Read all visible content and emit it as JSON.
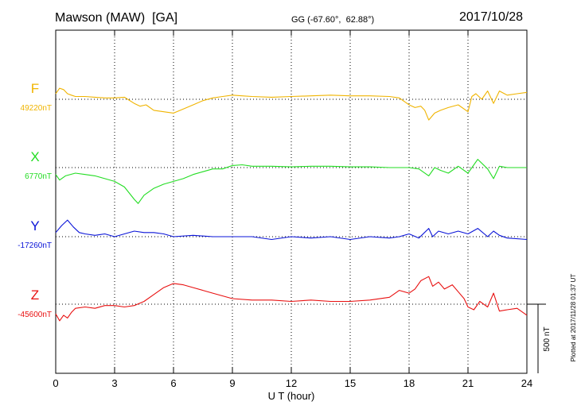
{
  "header": {
    "station": "Mawson (MAW)  [GA]",
    "coords": "GG (-67.60°,  62.88°)",
    "date": "2017/10/28"
  },
  "footer": {
    "plotted": "Plotted at 2017/11/28 01:37 UT"
  },
  "chart_data": {
    "type": "line",
    "xlabel": "U T (hour)",
    "xlim": [
      0,
      24
    ],
    "xticks": [
      0,
      3,
      6,
      9,
      12,
      15,
      18,
      21,
      24
    ],
    "scale_bar": {
      "label": "500 nT",
      "value_nT": 500
    },
    "series": [
      {
        "name": "F",
        "baseline_label": "49220nT",
        "baseline_nT": 49220,
        "color": "#f0b400",
        "x": [
          0,
          0.2,
          0.4,
          0.6,
          0.8,
          1.0,
          1.5,
          2.0,
          2.5,
          3.0,
          3.5,
          4.0,
          4.3,
          4.6,
          5.0,
          5.5,
          6.0,
          6.5,
          7.0,
          7.5,
          8.0,
          8.5,
          9.0,
          9.5,
          10,
          11,
          12,
          13,
          14,
          15,
          16,
          17,
          17.5,
          18,
          18.3,
          18.6,
          18.8,
          19.0,
          19.3,
          19.6,
          20.0,
          20.5,
          21.0,
          21.2,
          21.4,
          21.7,
          22.0,
          22.3,
          22.6,
          23,
          23.5,
          24
        ],
        "y": [
          40,
          80,
          70,
          40,
          30,
          20,
          20,
          15,
          10,
          10,
          15,
          -30,
          -50,
          -40,
          -80,
          -90,
          -100,
          -70,
          -40,
          -10,
          10,
          20,
          30,
          25,
          20,
          15,
          20,
          25,
          30,
          25,
          25,
          20,
          10,
          -40,
          -60,
          -50,
          -80,
          -150,
          -100,
          -80,
          -60,
          -40,
          -90,
          20,
          40,
          0,
          60,
          -30,
          60,
          30,
          40,
          50
        ]
      },
      {
        "name": "X",
        "baseline_label": "6770nT",
        "baseline_nT": 6770,
        "color": "#22dd22",
        "x": [
          0,
          0.2,
          0.5,
          1.0,
          1.5,
          2.0,
          2.5,
          3.0,
          3.5,
          4.0,
          4.2,
          4.5,
          5.0,
          5.5,
          6.0,
          6.5,
          7.0,
          7.5,
          8.0,
          8.5,
          9.0,
          9.5,
          10,
          11,
          12,
          13,
          14,
          15,
          16,
          17,
          18,
          18.5,
          19,
          19.3,
          19.6,
          20,
          20.5,
          21,
          21.5,
          22,
          22.3,
          22.6,
          23,
          24
        ],
        "y": [
          -50,
          -90,
          -60,
          -40,
          -50,
          -60,
          -80,
          -100,
          -140,
          -230,
          -260,
          -200,
          -150,
          -120,
          -100,
          -80,
          -50,
          -30,
          -10,
          -10,
          15,
          20,
          10,
          10,
          5,
          10,
          10,
          5,
          5,
          0,
          0,
          -10,
          -60,
          0,
          -20,
          -40,
          10,
          -40,
          60,
          -10,
          -80,
          10,
          0,
          0
        ]
      },
      {
        "name": "Y",
        "baseline_label": "-17260nT",
        "baseline_nT": -17260,
        "color": "#0a14d8",
        "x": [
          0,
          0.3,
          0.6,
          0.9,
          1.2,
          1.5,
          2,
          2.5,
          3,
          3.5,
          4,
          4.5,
          5,
          5.5,
          6,
          7,
          8,
          9,
          10,
          11,
          12,
          13,
          14,
          15,
          16,
          17,
          17.5,
          18,
          18.5,
          19,
          19.2,
          19.5,
          20,
          20.5,
          21,
          21.5,
          22,
          22.3,
          22.6,
          23,
          24
        ],
        "y": [
          30,
          80,
          120,
          70,
          30,
          20,
          10,
          20,
          0,
          20,
          40,
          30,
          30,
          20,
          0,
          10,
          0,
          0,
          0,
          -20,
          0,
          -10,
          0,
          -20,
          0,
          -10,
          0,
          20,
          -10,
          60,
          0,
          40,
          20,
          40,
          20,
          60,
          0,
          40,
          10,
          -10,
          -20
        ]
      },
      {
        "name": "Z",
        "baseline_label": "-45600nT",
        "baseline_nT": -45600,
        "color": "#e81010",
        "x": [
          0,
          0.2,
          0.4,
          0.6,
          0.8,
          1,
          1.5,
          2,
          2.5,
          3,
          3.5,
          4,
          4.5,
          5,
          5.5,
          6,
          6.5,
          7,
          7.5,
          8,
          9,
          10,
          11,
          12,
          13,
          14,
          15,
          16,
          17,
          17.5,
          18,
          18.3,
          18.6,
          19,
          19.2,
          19.5,
          19.8,
          20.2,
          20.5,
          20.8,
          21,
          21.3,
          21.6,
          22,
          22.3,
          22.6,
          23,
          23.5,
          24
        ],
        "y": [
          -70,
          -120,
          -80,
          -100,
          -60,
          -30,
          -20,
          -30,
          -10,
          -10,
          -20,
          -10,
          20,
          70,
          120,
          150,
          140,
          120,
          100,
          80,
          40,
          30,
          30,
          20,
          30,
          20,
          20,
          30,
          50,
          100,
          80,
          110,
          170,
          200,
          130,
          160,
          110,
          140,
          90,
          40,
          -20,
          -40,
          20,
          -20,
          80,
          -50,
          -40,
          -30,
          -80
        ]
      }
    ]
  }
}
